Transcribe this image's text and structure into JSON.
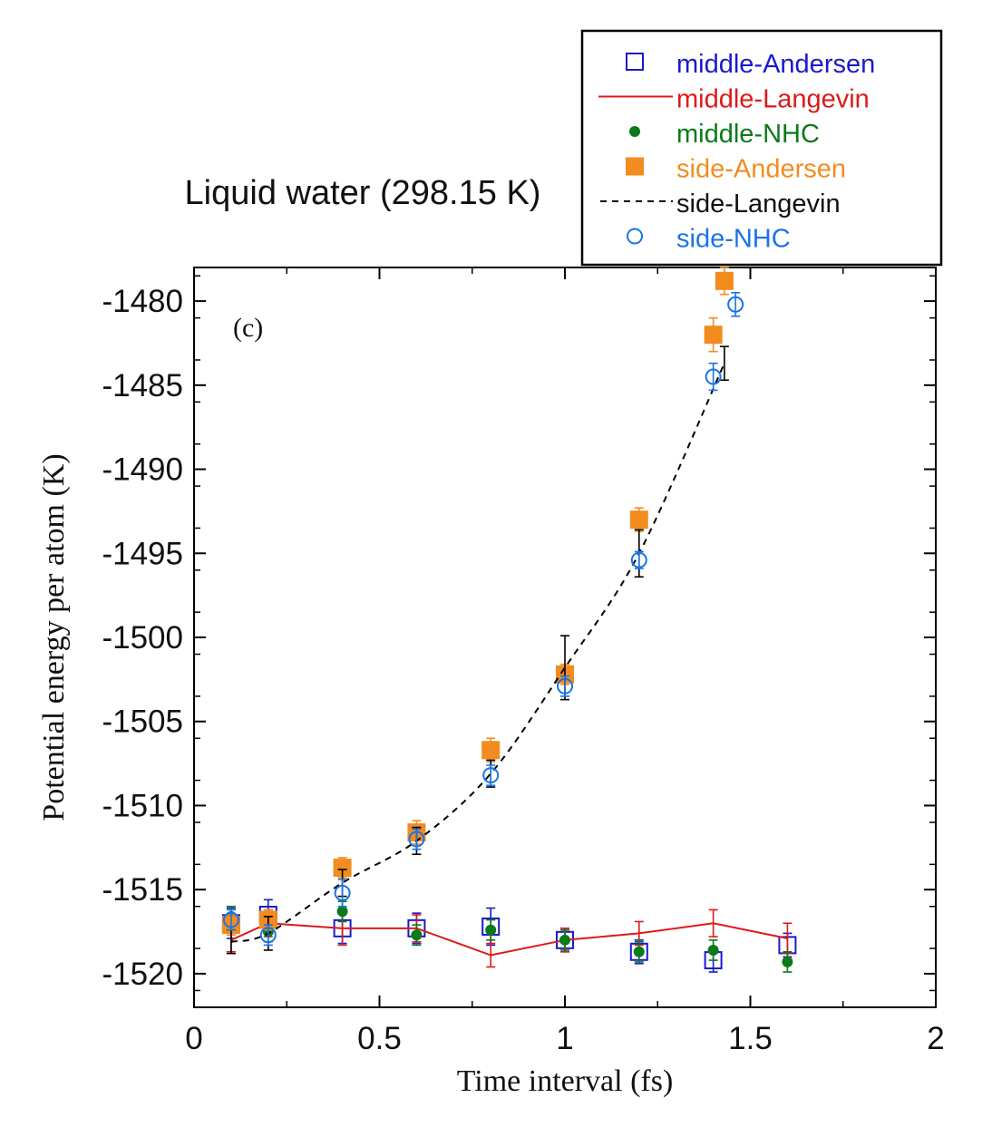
{
  "chart_data": {
    "type": "scatter",
    "title": "Liquid water (298.15 K)",
    "panel_label": "(c)",
    "xlabel": "Time interval (fs)",
    "ylabel": "Potential energy per atom (K)",
    "xlim": [
      0,
      2
    ],
    "ylim": [
      -1522,
      -1478
    ],
    "xticks": [
      0,
      0.5,
      1,
      1.5,
      2
    ],
    "xtick_labels": [
      "0",
      "0.5",
      "1",
      "1.5",
      "2"
    ],
    "yticks": [
      -1480,
      -1485,
      -1490,
      -1495,
      -1500,
      -1505,
      -1510,
      -1515,
      -1520
    ],
    "ytick_labels": [
      "-1480",
      "-1485",
      "-1490",
      "-1495",
      "-1500",
      "-1505",
      "-1510",
      "-1515",
      "-1520"
    ],
    "grid": false,
    "legend_position": "top-right, outside plot",
    "series": [
      {
        "name": "middle-Andersen",
        "marker": "open-square",
        "color": "#1a1acc",
        "x": [
          0.1,
          0.2,
          0.4,
          0.6,
          0.8,
          1.0,
          1.2,
          1.4,
          1.6
        ],
        "y": [
          -1517.0,
          -1516.5,
          -1517.3,
          -1517.3,
          -1517.2,
          -1518.0,
          -1518.7,
          -1519.2,
          -1518.3
        ],
        "err": [
          0.9,
          0.9,
          0.9,
          0.9,
          1.1,
          0.7,
          0.7,
          0.7,
          0.7
        ]
      },
      {
        "name": "middle-Langevin",
        "marker": "line",
        "color": "#dd1a1a",
        "x": [
          0.1,
          0.2,
          0.4,
          0.6,
          0.8,
          1.0,
          1.2,
          1.4,
          1.6
        ],
        "y": [
          -1518.0,
          -1517.0,
          -1517.3,
          -1517.3,
          -1518.9,
          -1518.0,
          -1517.6,
          -1517.0,
          -1517.9
        ],
        "err": [
          0.7,
          0.8,
          1.0,
          0.8,
          0.7,
          0.7,
          0.7,
          0.8,
          0.9
        ]
      },
      {
        "name": "middle-NHC",
        "marker": "filled-circle",
        "color": "#0a7a1a",
        "x": [
          0.1,
          0.2,
          0.4,
          0.6,
          0.8,
          1.0,
          1.2,
          1.4,
          1.6
        ],
        "y": [
          -1516.6,
          -1517.5,
          -1516.3,
          -1517.7,
          -1517.4,
          -1518.0,
          -1518.7,
          -1518.6,
          -1519.3
        ],
        "err": [
          0.6,
          0.6,
          0.6,
          0.6,
          0.6,
          0.6,
          0.6,
          0.6,
          0.6
        ]
      },
      {
        "name": "side-Andersen",
        "marker": "filled-square",
        "color": "#f28c1e",
        "x": [
          0.1,
          0.2,
          0.4,
          0.6,
          0.8,
          1.0,
          1.2,
          1.4,
          1.43
        ],
        "y": [
          -1517.1,
          -1516.8,
          -1513.7,
          -1511.6,
          -1506.7,
          -1502.2,
          -1493.0,
          -1482.0,
          -1478.8
        ],
        "err": [
          0.6,
          0.6,
          0.6,
          0.7,
          0.7,
          0.6,
          0.7,
          1.0,
          0.8
        ]
      },
      {
        "name": "side-Langevin",
        "marker": "dashed-line",
        "color": "#000000",
        "x": [
          0.1,
          0.2,
          0.4,
          0.6,
          0.8,
          1.0,
          1.2,
          1.43
        ],
        "y": [
          -1518.1,
          -1517.6,
          -1514.6,
          -1512.1,
          -1508.1,
          -1501.8,
          -1495.0,
          -1483.7
        ],
        "err": [
          0.7,
          1.0,
          0.8,
          0.8,
          0.8,
          1.9,
          1.4,
          1.0
        ]
      },
      {
        "name": "side-NHC",
        "marker": "open-circle",
        "color": "#1a73e8",
        "x": [
          0.1,
          0.2,
          0.4,
          0.6,
          0.8,
          1.0,
          1.2,
          1.4,
          1.46
        ],
        "y": [
          -1516.8,
          -1517.7,
          -1515.2,
          -1512.0,
          -1508.2,
          -1502.9,
          -1495.4,
          -1484.5,
          -1480.2
        ],
        "err": [
          0.6,
          0.6,
          0.8,
          0.6,
          0.6,
          0.6,
          0.5,
          0.8,
          0.7
        ]
      }
    ]
  }
}
